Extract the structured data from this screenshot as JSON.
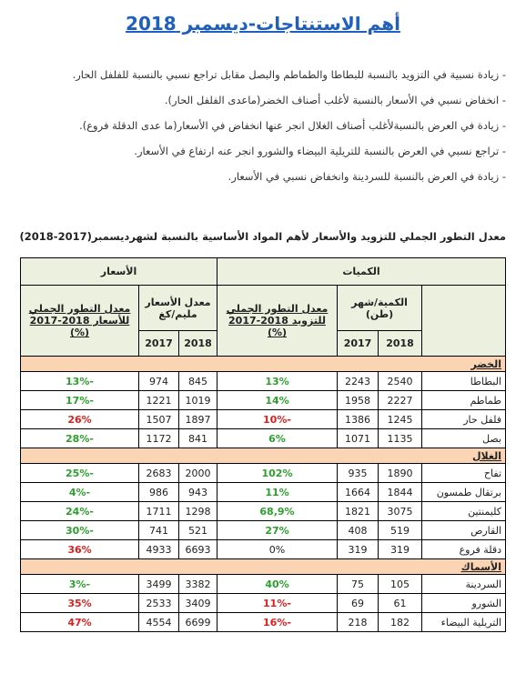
{
  "header": {
    "title": "أهم الاستنتاجات-ديسمبر 2018"
  },
  "bullets": [
    "- زيادة نسبية في التزويد بالنسبة للبطاطا والطماطم والبصل مقابل تراجع نسبي بالنسبة للفلفل الحار.",
    "- انخفاض نسبي في الأسعار بالنسبة لأغلب أصناف الخضر(ماعدى الفلفل  الحار).",
    "- زيادة في العرض بالنسبةلأغلب أصناف الغلال انجر عنها انخفاض في الأسعار(ما عدى الدقلة فروع).",
    "- تراجع نسبي في العرض بالنسبة للتريلية البيضاء والشورو انجر عنه ارتفاع في الأسعار.",
    "- زيادة في العرض بالنسبة للسردينة وانخفاض نسبي في الأسعار."
  ],
  "table": {
    "title": "معدل التطور الجملي للتزويد والأسعار لأهم المواد الأساسية بالنسبة لشهرديسمبر(2017-2018)",
    "head": {
      "quantities": "الكميات",
      "prices": "الأسعار",
      "qty_month": "الكمية/شهر",
      "qty_unit": "(طن)",
      "qty_evol": "معدل التطور الجملي للتزويد 2018-2017 (%)",
      "price_avg": "معدل الأسعار",
      "price_unit": "مليم/كغ",
      "price_evol": "معدل التطور الجملي للأسعار 2018-2017 (%)",
      "y2018": "2018",
      "y2017": "2017"
    },
    "groups": [
      {
        "name": "الخضر",
        "rows": [
          [
            "البطاطا",
            2540,
            2243,
            "13%",
            845,
            974,
            "-13%"
          ],
          [
            "طماطم",
            2227,
            1958,
            "14%",
            1019,
            1221,
            "-17%"
          ],
          [
            "فلفل حار",
            1245,
            1386,
            "-10%",
            1897,
            1507,
            "26%"
          ],
          [
            "بصل",
            1135,
            1071,
            "6%",
            841,
            1172,
            "-28%"
          ]
        ]
      },
      {
        "name": "الغلال",
        "rows": [
          [
            "تفاح",
            1890,
            935,
            "102%",
            2000,
            2683,
            "-25%"
          ],
          [
            "برتقال طمسون",
            1844,
            1664,
            "11%",
            943,
            986,
            "-4%"
          ],
          [
            "كليمنتين",
            3075,
            1821,
            "68,9%",
            1298,
            1711,
            "-24%"
          ],
          [
            "القارص",
            519,
            408,
            "27%",
            521,
            741,
            "-30%"
          ],
          [
            "دقلة فروع",
            319,
            319,
            "0%",
            6693,
            4933,
            "36%"
          ]
        ]
      },
      {
        "name": "الأسماك",
        "rows": [
          [
            "السردينة",
            105,
            75,
            "40%",
            3382,
            3499,
            "-3%"
          ],
          [
            "الشورو",
            61,
            69,
            "-11%",
            3409,
            2533,
            "35%"
          ],
          [
            "التريلية البيضاء",
            182,
            218,
            "-16%",
            6699,
            4554,
            "47%"
          ]
        ]
      }
    ]
  }
}
